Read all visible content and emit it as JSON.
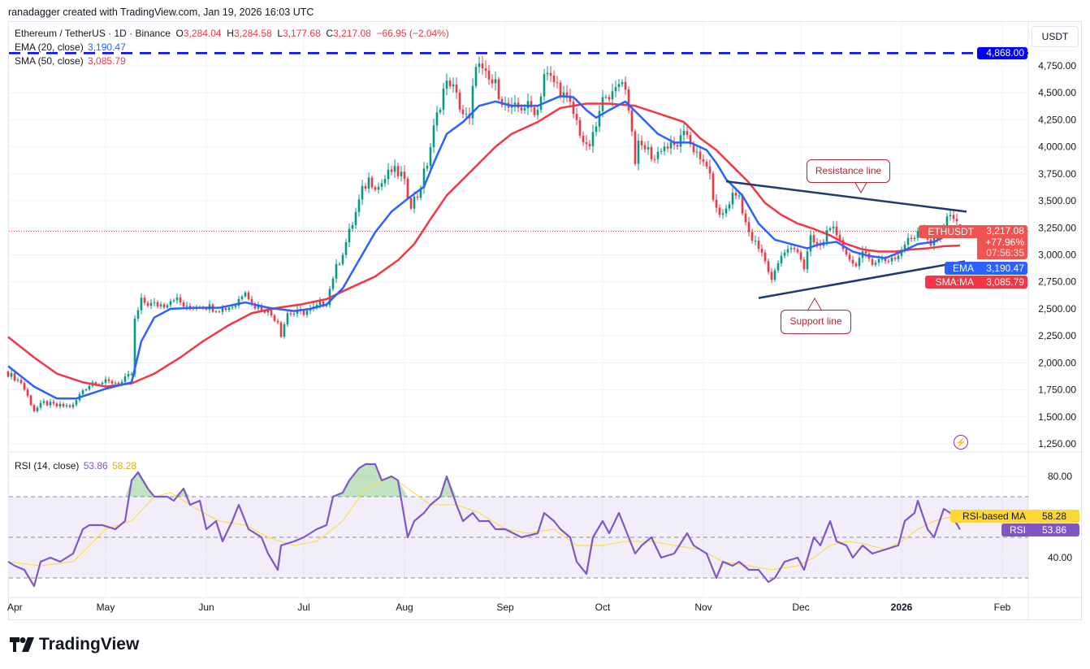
{
  "credit": "ranadagger created with TradingView.com, Jan 19, 2026 16:03 UTC",
  "logo_text": "TradingView",
  "legend": {
    "symbol": "Ethereum / TetherUS · 1D · Binance",
    "o_label": "O",
    "o": "3,284.04",
    "h_label": "H",
    "h": "3,284.58",
    "l_label": "L",
    "l": "3,177.68",
    "c_label": "C",
    "c": "3,217.08",
    "change": "−66.95 (−2.04%)",
    "ema_label": "EMA (20, close)",
    "ema_value": "3,190.47",
    "sma_label": "SMA (50, close)",
    "sma_value": "3,085.79",
    "rsi_label": "RSI (14, close)",
    "rsi_value": "53.86",
    "rsi_ma_value": "58.28"
  },
  "currency_button": "USDT",
  "tags": {
    "hline_value": "4,868.00",
    "symbol": "ETHUSDT",
    "price": "3,217.08",
    "change_pct": "+77.96%",
    "countdown": "07:56:35",
    "ema_label": "EMA",
    "ema_value": "3,190.47",
    "sma_label": "SMA:MA",
    "sma_value": "3,085.79",
    "rsi_ma_label": "RSI-based MA",
    "rsi_ma_value": "58.28",
    "rsi_label": "RSI",
    "rsi_value": "53.86"
  },
  "annotations": {
    "resistance": "Resistance line",
    "support": "Support line"
  },
  "colors": {
    "up": "#089981",
    "down": "#f23645",
    "ema": "#2962ff",
    "sma": "#f23645",
    "rsi": "#7e57c2",
    "rsi_ma": "#fdd835",
    "hline": "#0000ff",
    "trend": "#1e3a6e"
  },
  "chart_data": {
    "type": "candlestick",
    "title": "Ethereum / TetherUS · 1D · Binance",
    "x_unit": "days since Apr 1, 2025",
    "price_axis": {
      "ylim": [
        1150,
        4950
      ],
      "ticks": [
        1250,
        1500,
        1750,
        2000,
        2250,
        2500,
        2750,
        3000,
        3250,
        3500,
        3750,
        4000,
        4250,
        4500,
        4750
      ]
    },
    "price_tick_labels": [
      "1,250.00",
      "1,500.00",
      "1,750.00",
      "2,000.00",
      "2,250.00",
      "2,500.00",
      "2,750.00",
      "3,000.00",
      "3,250.00",
      "3,500.00",
      "3,750.00",
      "4,000.00",
      "4,250.00",
      "4,500.00",
      "4,750.00"
    ],
    "time_ticks": [
      {
        "label": "Apr",
        "day": 0
      },
      {
        "label": "May",
        "day": 30
      },
      {
        "label": "Jun",
        "day": 61
      },
      {
        "label": "Jul",
        "day": 91
      },
      {
        "label": "Aug",
        "day": 122
      },
      {
        "label": "Sep",
        "day": 153
      },
      {
        "label": "Oct",
        "day": 183
      },
      {
        "label": "Nov",
        "day": 214
      },
      {
        "label": "Dec",
        "day": 244
      },
      {
        "label": "2026",
        "day": 275
      },
      {
        "label": "Feb",
        "day": 306
      }
    ],
    "last_candle": {
      "day": 293,
      "open": 3284.04,
      "high": 3284.58,
      "low": 3177.68,
      "close": 3217.08
    },
    "close_path": [
      [
        0,
        1900
      ],
      [
        4,
        1820
      ],
      [
        8,
        1560
      ],
      [
        11,
        1630
      ],
      [
        15,
        1600
      ],
      [
        20,
        1600
      ],
      [
        23,
        1750
      ],
      [
        26,
        1820
      ],
      [
        30,
        1820
      ],
      [
        35,
        1820
      ],
      [
        38,
        1900
      ],
      [
        39,
        2390
      ],
      [
        41,
        2570
      ],
      [
        44,
        2540
      ],
      [
        48,
        2540
      ],
      [
        51,
        2610
      ],
      [
        55,
        2500
      ],
      [
        59,
        2540
      ],
      [
        63,
        2510
      ],
      [
        66,
        2500
      ],
      [
        70,
        2540
      ],
      [
        73,
        2690
      ],
      [
        75,
        2540
      ],
      [
        79,
        2500
      ],
      [
        83,
        2390
      ],
      [
        84,
        2270
      ],
      [
        86,
        2460
      ],
      [
        90,
        2460
      ],
      [
        94,
        2500
      ],
      [
        98,
        2570
      ],
      [
        100,
        2800
      ],
      [
        103,
        3030
      ],
      [
        106,
        3290
      ],
      [
        109,
        3590
      ],
      [
        111,
        3700
      ],
      [
        114,
        3630
      ],
      [
        118,
        3780
      ],
      [
        121,
        3740
      ],
      [
        124,
        3480
      ],
      [
        126,
        3550
      ],
      [
        129,
        3850
      ],
      [
        131,
        4160
      ],
      [
        134,
        4530
      ],
      [
        136,
        4610
      ],
      [
        138,
        4460
      ],
      [
        140,
        4310
      ],
      [
        142,
        4230
      ],
      [
        144,
        4800
      ],
      [
        146,
        4680
      ],
      [
        148,
        4610
      ],
      [
        150,
        4570
      ],
      [
        153,
        4380
      ],
      [
        155,
        4340
      ],
      [
        159,
        4380
      ],
      [
        163,
        4340
      ],
      [
        165,
        4680
      ],
      [
        169,
        4570
      ],
      [
        173,
        4380
      ],
      [
        175,
        4230
      ],
      [
        178,
        3970
      ],
      [
        180,
        4080
      ],
      [
        184,
        4530
      ],
      [
        186,
        4460
      ],
      [
        189,
        4650
      ],
      [
        191,
        4380
      ],
      [
        193,
        3890
      ],
      [
        194,
        4000
      ],
      [
        196,
        4000
      ],
      [
        199,
        3890
      ],
      [
        201,
        4000
      ],
      [
        205,
        4000
      ],
      [
        209,
        4120
      ],
      [
        213,
        3850
      ],
      [
        215,
        3850
      ],
      [
        218,
        3400
      ],
      [
        220,
        3370
      ],
      [
        223,
        3550
      ],
      [
        225,
        3550
      ],
      [
        228,
        3180
      ],
      [
        230,
        3100
      ],
      [
        233,
        2950
      ],
      [
        235,
        2760
      ],
      [
        236,
        2880
      ],
      [
        239,
        3030
      ],
      [
        243,
        3060
      ],
      [
        245,
        2880
      ],
      [
        247,
        3140
      ],
      [
        250,
        3060
      ],
      [
        253,
        3290
      ],
      [
        255,
        3140
      ],
      [
        258,
        3030
      ],
      [
        260,
        2910
      ],
      [
        263,
        2990
      ],
      [
        266,
        2950
      ],
      [
        270,
        2950
      ],
      [
        274,
        2990
      ],
      [
        276,
        3100
      ],
      [
        279,
        3180
      ],
      [
        281,
        3290
      ],
      [
        284,
        3100
      ],
      [
        286,
        3140
      ],
      [
        289,
        3370
      ],
      [
        291,
        3330
      ],
      [
        293,
        3217.08
      ]
    ],
    "ema20": [
      [
        0,
        1970
      ],
      [
        8,
        1780
      ],
      [
        15,
        1670
      ],
      [
        21,
        1670
      ],
      [
        30,
        1760
      ],
      [
        38,
        1820
      ],
      [
        41,
        2200
      ],
      [
        45,
        2420
      ],
      [
        50,
        2500
      ],
      [
        58,
        2510
      ],
      [
        65,
        2510
      ],
      [
        73,
        2560
      ],
      [
        80,
        2510
      ],
      [
        88,
        2480
      ],
      [
        93,
        2500
      ],
      [
        98,
        2540
      ],
      [
        103,
        2690
      ],
      [
        108,
        2950
      ],
      [
        113,
        3210
      ],
      [
        118,
        3400
      ],
      [
        123,
        3520
      ],
      [
        128,
        3630
      ],
      [
        131,
        3850
      ],
      [
        135,
        4120
      ],
      [
        140,
        4230
      ],
      [
        145,
        4380
      ],
      [
        150,
        4420
      ],
      [
        155,
        4380
      ],
      [
        163,
        4380
      ],
      [
        170,
        4470
      ],
      [
        174,
        4460
      ],
      [
        178,
        4340
      ],
      [
        181,
        4270
      ],
      [
        185,
        4340
      ],
      [
        190,
        4420
      ],
      [
        195,
        4270
      ],
      [
        200,
        4120
      ],
      [
        205,
        4040
      ],
      [
        210,
        4040
      ],
      [
        215,
        3970
      ],
      [
        218,
        3850
      ],
      [
        221,
        3700
      ],
      [
        226,
        3550
      ],
      [
        231,
        3290
      ],
      [
        236,
        3140
      ],
      [
        241,
        3100
      ],
      [
        246,
        3060
      ],
      [
        250,
        3100
      ],
      [
        255,
        3120
      ],
      [
        260,
        3030
      ],
      [
        265,
        2990
      ],
      [
        270,
        2970
      ],
      [
        275,
        3030
      ],
      [
        280,
        3100
      ],
      [
        285,
        3120
      ],
      [
        289,
        3180
      ],
      [
        293,
        3190.47
      ]
    ],
    "sma50": [
      [
        0,
        2240
      ],
      [
        8,
        2050
      ],
      [
        15,
        1900
      ],
      [
        23,
        1820
      ],
      [
        30,
        1780
      ],
      [
        38,
        1810
      ],
      [
        45,
        1900
      ],
      [
        53,
        2050
      ],
      [
        60,
        2200
      ],
      [
        68,
        2350
      ],
      [
        75,
        2460
      ],
      [
        83,
        2510
      ],
      [
        90,
        2540
      ],
      [
        98,
        2590
      ],
      [
        105,
        2690
      ],
      [
        113,
        2800
      ],
      [
        120,
        2950
      ],
      [
        125,
        3100
      ],
      [
        130,
        3330
      ],
      [
        135,
        3550
      ],
      [
        140,
        3700
      ],
      [
        145,
        3850
      ],
      [
        150,
        4000
      ],
      [
        155,
        4120
      ],
      [
        163,
        4230
      ],
      [
        170,
        4360
      ],
      [
        178,
        4400
      ],
      [
        185,
        4400
      ],
      [
        193,
        4380
      ],
      [
        200,
        4310
      ],
      [
        208,
        4230
      ],
      [
        213,
        4080
      ],
      [
        218,
        3970
      ],
      [
        223,
        3820
      ],
      [
        228,
        3670
      ],
      [
        233,
        3480
      ],
      [
        238,
        3370
      ],
      [
        243,
        3290
      ],
      [
        248,
        3240
      ],
      [
        253,
        3180
      ],
      [
        258,
        3100
      ],
      [
        263,
        3050
      ],
      [
        268,
        3030
      ],
      [
        273,
        3030
      ],
      [
        278,
        3050
      ],
      [
        283,
        3060
      ],
      [
        288,
        3080
      ],
      [
        293,
        3085.79
      ]
    ],
    "horizontal_line": 4868,
    "resistance_line": [
      [
        221,
        3680
      ],
      [
        295,
        3400
      ]
    ],
    "support_line": [
      [
        231,
        2600
      ],
      [
        294.5,
        2940
      ]
    ],
    "rsi": {
      "ylim": [
        22,
        98
      ],
      "ticks": [
        40,
        80
      ],
      "tick_labels": [
        "40.00",
        "80.00"
      ],
      "bands": [
        30,
        50,
        70
      ],
      "values": [
        [
          0,
          38
        ],
        [
          2,
          36
        ],
        [
          5,
          34
        ],
        [
          8,
          26
        ],
        [
          10,
          38
        ],
        [
          13,
          40
        ],
        [
          16,
          38
        ],
        [
          20,
          42
        ],
        [
          23,
          54
        ],
        [
          25,
          56
        ],
        [
          29,
          56
        ],
        [
          33,
          54
        ],
        [
          36,
          58
        ],
        [
          38,
          78
        ],
        [
          40,
          82
        ],
        [
          43,
          74
        ],
        [
          45,
          70
        ],
        [
          49,
          70
        ],
        [
          51,
          68
        ],
        [
          54,
          74
        ],
        [
          56,
          66
        ],
        [
          59,
          68
        ],
        [
          61,
          54
        ],
        [
          64,
          58
        ],
        [
          66,
          48
        ],
        [
          69,
          58
        ],
        [
          71,
          66
        ],
        [
          74,
          54
        ],
        [
          78,
          50
        ],
        [
          80,
          42
        ],
        [
          83,
          34
        ],
        [
          84,
          46
        ],
        [
          88,
          48
        ],
        [
          91,
          50
        ],
        [
          95,
          54
        ],
        [
          98,
          56
        ],
        [
          100,
          70
        ],
        [
          103,
          72
        ],
        [
          105,
          78
        ],
        [
          108,
          84
        ],
        [
          110,
          86
        ],
        [
          113,
          86
        ],
        [
          115,
          78
        ],
        [
          118,
          80
        ],
        [
          120,
          78
        ],
        [
          123,
          50
        ],
        [
          125,
          58
        ],
        [
          128,
          62
        ],
        [
          130,
          66
        ],
        [
          133,
          70
        ],
        [
          135,
          80
        ],
        [
          138,
          66
        ],
        [
          140,
          58
        ],
        [
          143,
          62
        ],
        [
          145,
          58
        ],
        [
          148,
          58
        ],
        [
          150,
          54
        ],
        [
          153,
          54
        ],
        [
          158,
          50
        ],
        [
          163,
          52
        ],
        [
          165,
          62
        ],
        [
          168,
          58
        ],
        [
          170,
          54
        ],
        [
          173,
          50
        ],
        [
          175,
          38
        ],
        [
          178,
          32
        ],
        [
          180,
          50
        ],
        [
          183,
          58
        ],
        [
          185,
          52
        ],
        [
          188,
          62
        ],
        [
          190,
          54
        ],
        [
          193,
          42
        ],
        [
          195,
          46
        ],
        [
          198,
          50
        ],
        [
          201,
          40
        ],
        [
          205,
          42
        ],
        [
          209,
          52
        ],
        [
          211,
          46
        ],
        [
          215,
          42
        ],
        [
          218,
          30
        ],
        [
          220,
          38
        ],
        [
          223,
          36
        ],
        [
          225,
          38
        ],
        [
          228,
          34
        ],
        [
          231,
          34
        ],
        [
          234,
          28
        ],
        [
          236,
          30
        ],
        [
          239,
          38
        ],
        [
          243,
          40
        ],
        [
          245,
          34
        ],
        [
          248,
          50
        ],
        [
          250,
          46
        ],
        [
          253,
          58
        ],
        [
          255,
          48
        ],
        [
          258,
          46
        ],
        [
          260,
          40
        ],
        [
          263,
          46
        ],
        [
          266,
          42
        ],
        [
          270,
          44
        ],
        [
          274,
          46
        ],
        [
          276,
          58
        ],
        [
          279,
          62
        ],
        [
          280,
          68
        ],
        [
          283,
          54
        ],
        [
          285,
          50
        ],
        [
          288,
          64
        ],
        [
          290,
          62
        ],
        [
          293,
          53.86
        ]
      ],
      "ma": [
        [
          0,
          38
        ],
        [
          10,
          36
        ],
        [
          20,
          38
        ],
        [
          30,
          54
        ],
        [
          38,
          58
        ],
        [
          45,
          70
        ],
        [
          50,
          72
        ],
        [
          58,
          64
        ],
        [
          65,
          58
        ],
        [
          73,
          56
        ],
        [
          80,
          50
        ],
        [
          88,
          46
        ],
        [
          95,
          48
        ],
        [
          103,
          58
        ],
        [
          110,
          74
        ],
        [
          118,
          80
        ],
        [
          123,
          74
        ],
        [
          130,
          66
        ],
        [
          138,
          66
        ],
        [
          145,
          62
        ],
        [
          153,
          54
        ],
        [
          160,
          52
        ],
        [
          168,
          54
        ],
        [
          175,
          46
        ],
        [
          183,
          46
        ],
        [
          190,
          48
        ],
        [
          198,
          48
        ],
        [
          205,
          46
        ],
        [
          213,
          44
        ],
        [
          220,
          38
        ],
        [
          228,
          36
        ],
        [
          235,
          34
        ],
        [
          243,
          36
        ],
        [
          248,
          40
        ],
        [
          253,
          46
        ],
        [
          258,
          48
        ],
        [
          263,
          47
        ],
        [
          270,
          44
        ],
        [
          275,
          48
        ],
        [
          280,
          54
        ],
        [
          285,
          58
        ],
        [
          290,
          60
        ],
        [
          293,
          58.28
        ]
      ]
    }
  }
}
